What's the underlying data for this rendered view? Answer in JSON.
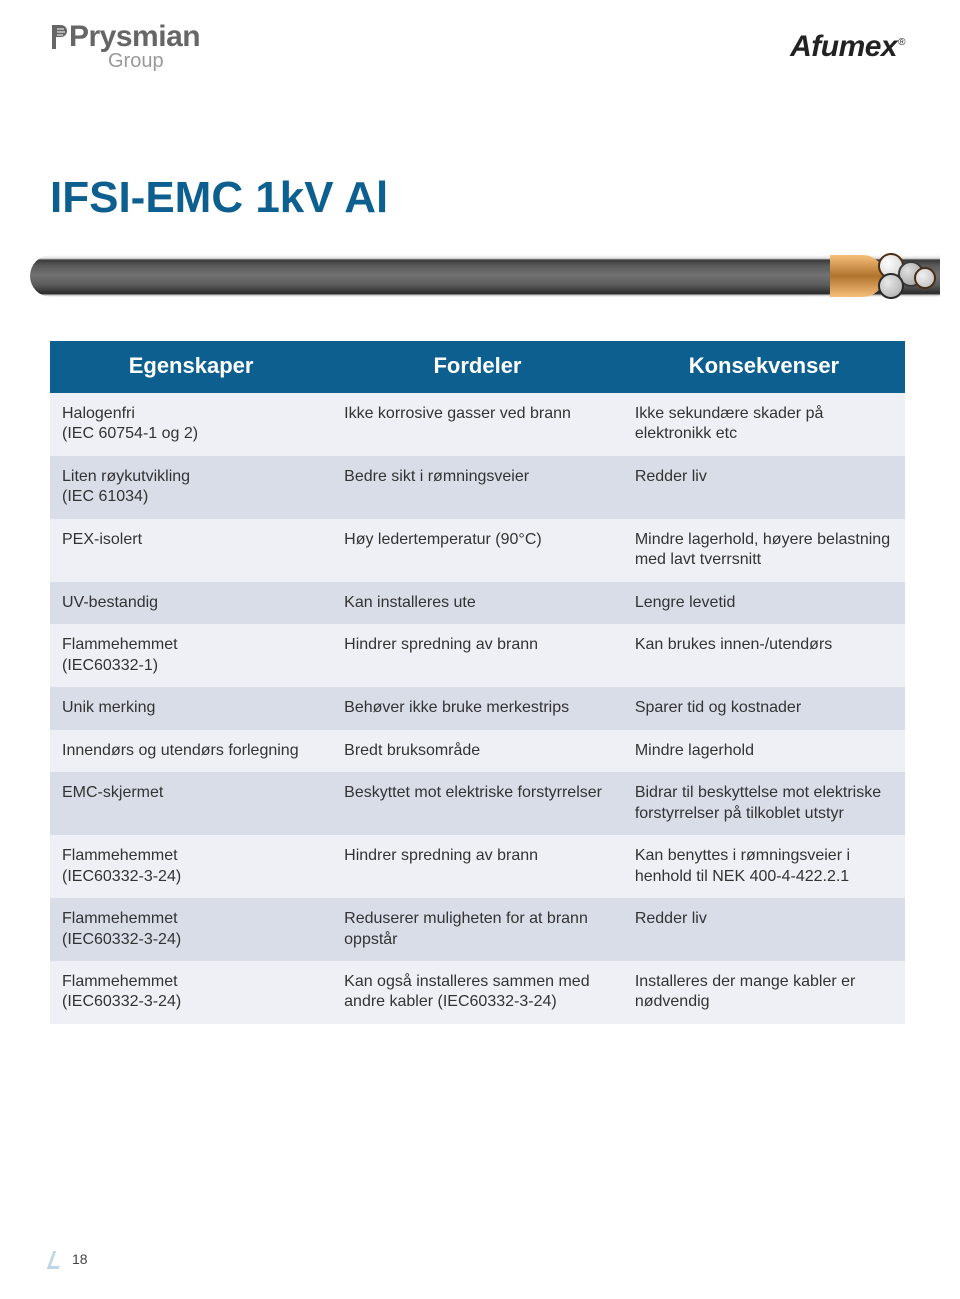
{
  "brand": {
    "left_main": "Prysmian",
    "left_sub": "Group",
    "right": "Afumex",
    "reg": "®"
  },
  "title": "IFSI-EMC 1kV Al",
  "colors": {
    "accent": "#0d5f8f",
    "row_odd": "#eef0f5",
    "row_even": "#d8dde7",
    "header_text": "#ffffff"
  },
  "table": {
    "headers": [
      "Egenskaper",
      "Fordeler",
      "Konsekvenser"
    ],
    "rows": [
      {
        "c1": "Halogenfri\n(IEC 60754-1 og 2)",
        "c2": "Ikke korrosive gasser ved brann",
        "c3": "Ikke sekundære skader på elektronikk etc"
      },
      {
        "c1": "Liten røykutvikling\n(IEC 61034)",
        "c2": "Bedre sikt i rømningsveier",
        "c3": "Redder liv"
      },
      {
        "c1": "PEX-isolert",
        "c2": "Høy ledertemperatur (90°C)",
        "c3": "Mindre lagerhold, høyere belastning med lavt tverrsnitt"
      },
      {
        "c1": "UV-bestandig",
        "c2": "Kan installeres ute",
        "c3": "Lengre levetid"
      },
      {
        "c1": "Flammehemmet\n(IEC60332-1)",
        "c2": "Hindrer spredning av brann",
        "c3": "Kan brukes innen-/utendørs"
      },
      {
        "c1": "Unik merking",
        "c2": "Behøver ikke bruke merkestrips",
        "c3": "Sparer tid og kostnader"
      },
      {
        "c1": "Innendørs og utendørs forlegning",
        "c2": "Bredt bruksområde",
        "c3": "Mindre lagerhold"
      },
      {
        "c1": "EMC-skjermet",
        "c2": "Beskyttet mot elektriske forstyrrelser",
        "c3": "Bidrar til beskyttelse mot elektriske forstyrrelser på tilkoblet utstyr"
      },
      {
        "c1": "Flammehemmet\n(IEC60332-3-24)",
        "c2": "Hindrer spredning av brann",
        "c3": "Kan benyttes i rømningsveier i henhold til NEK 400-4-422.2.1"
      },
      {
        "c1": "Flammehemmet\n(IEC60332-3-24)",
        "c2": "Reduserer muligheten for at brann oppstår",
        "c3": "Redder liv"
      },
      {
        "c1": "Flammehemmet\n(IEC60332-3-24)",
        "c2": "Kan også installeres sammen med andre kabler (IEC60332-3-24)",
        "c3": "Installeres der mange kabler er nødvendig"
      }
    ]
  },
  "page_number": "18"
}
